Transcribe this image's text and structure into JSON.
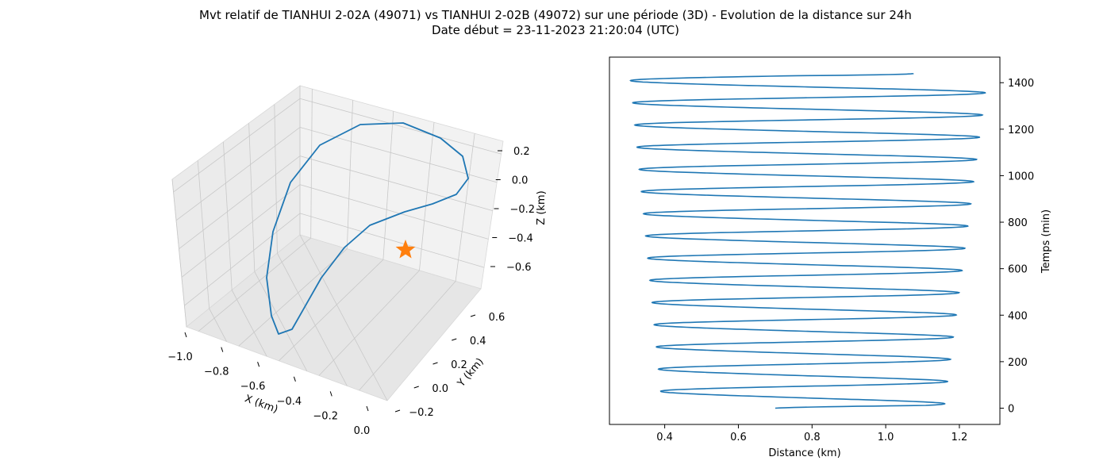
{
  "figure": {
    "title_line1": "Mvt relatif de TIANHUI 2-02A (49071) vs TIANHUI 2-02B (49072) sur une période (3D) - Evolution de la distance sur 24h",
    "title_line2": "Date début = 23-11-2023 21:20:04 (UTC)"
  },
  "colors": {
    "series": "#1f77b4",
    "marker": "#ff7f0e",
    "pane": "#f2f2f2",
    "grid": "#cccccc"
  },
  "chart_data": [
    {
      "type": "line",
      "projection": "3d",
      "xlabel": "X (km)",
      "ylabel": "Y (km)",
      "zlabel": "Z (km)",
      "xticks": [
        "−1.0",
        "−0.8",
        "−0.6",
        "−0.4",
        "−0.2",
        "0.0"
      ],
      "yticks": [
        "−0.2",
        "0.0",
        "0.2",
        "0.4",
        "0.6"
      ],
      "zticks": [
        "0.2",
        "0.0",
        "−0.2",
        "−0.4",
        "−0.6"
      ],
      "grid": true,
      "marker": {
        "shape": "star",
        "x": 0.0,
        "y": 0.0,
        "z": 0.0
      }
    },
    {
      "type": "line",
      "xlabel": "Distance (km)",
      "ylabel": "Temps (min)",
      "xlim": [
        0.25,
        1.31
      ],
      "ylim": [
        -70,
        1510
      ],
      "xticks": [
        "0.4",
        "0.6",
        "0.8",
        "1.0",
        "1.2"
      ],
      "xtick_values": [
        0.4,
        0.6,
        0.8,
        1.0,
        1.2
      ],
      "yticks": [
        "0",
        "200",
        "400",
        "600",
        "800",
        "1000",
        "1200",
        "1400"
      ],
      "ytick_values": [
        0,
        200,
        400,
        600,
        800,
        1000,
        1200,
        1400
      ],
      "y_axis_side": "right",
      "grid": false,
      "series": {
        "period_min": 95.5,
        "t_end": 1440,
        "start_distance": 0.7,
        "end_distance": 1.075,
        "max_distance": [
          1.14,
          1.26
        ],
        "min_distance": [
          0.39,
          0.3
        ]
      }
    }
  ]
}
